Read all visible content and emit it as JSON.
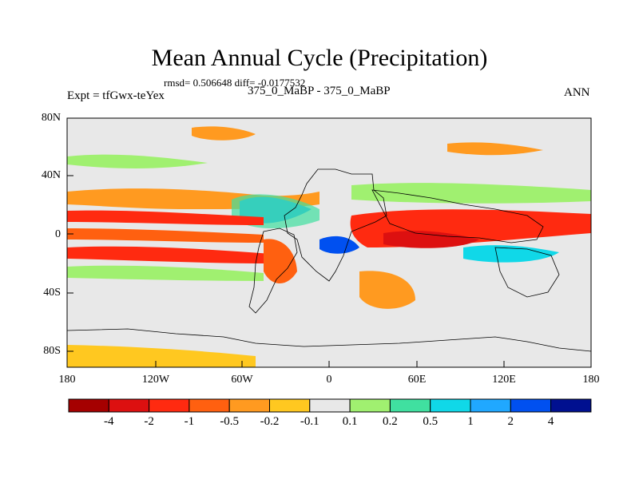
{
  "title": "Mean Annual Cycle (Precipitation)",
  "stats": "rmsd= 0.506648 diff= -0.0177532",
  "expt": "Expt = tfGwx-teYex",
  "case_name": "375_0_MaBP - 375_0_MaBP",
  "season": "ANN",
  "lat_labels": [
    "80N",
    "40N",
    "0",
    "40S",
    "80S"
  ],
  "lon_labels": [
    "180",
    "120W",
    "60W",
    "0",
    "60E",
    "120E",
    "180"
  ],
  "colorbar": {
    "labels": [
      "-4",
      "-2",
      "-1",
      "-0.5",
      "-0.2",
      "-0.1",
      "0.1",
      "0.2",
      "0.5",
      "1",
      "2",
      "4"
    ],
    "colors": [
      "#a50000",
      "#dd1010",
      "#ff2a10",
      "#ff6010",
      "#ff9a20",
      "#ffc820",
      "#e8e8e8",
      "#a0f070",
      "#40e0a0",
      "#10d8e8",
      "#20a8ff",
      "#0050f0",
      "#001090"
    ]
  }
}
